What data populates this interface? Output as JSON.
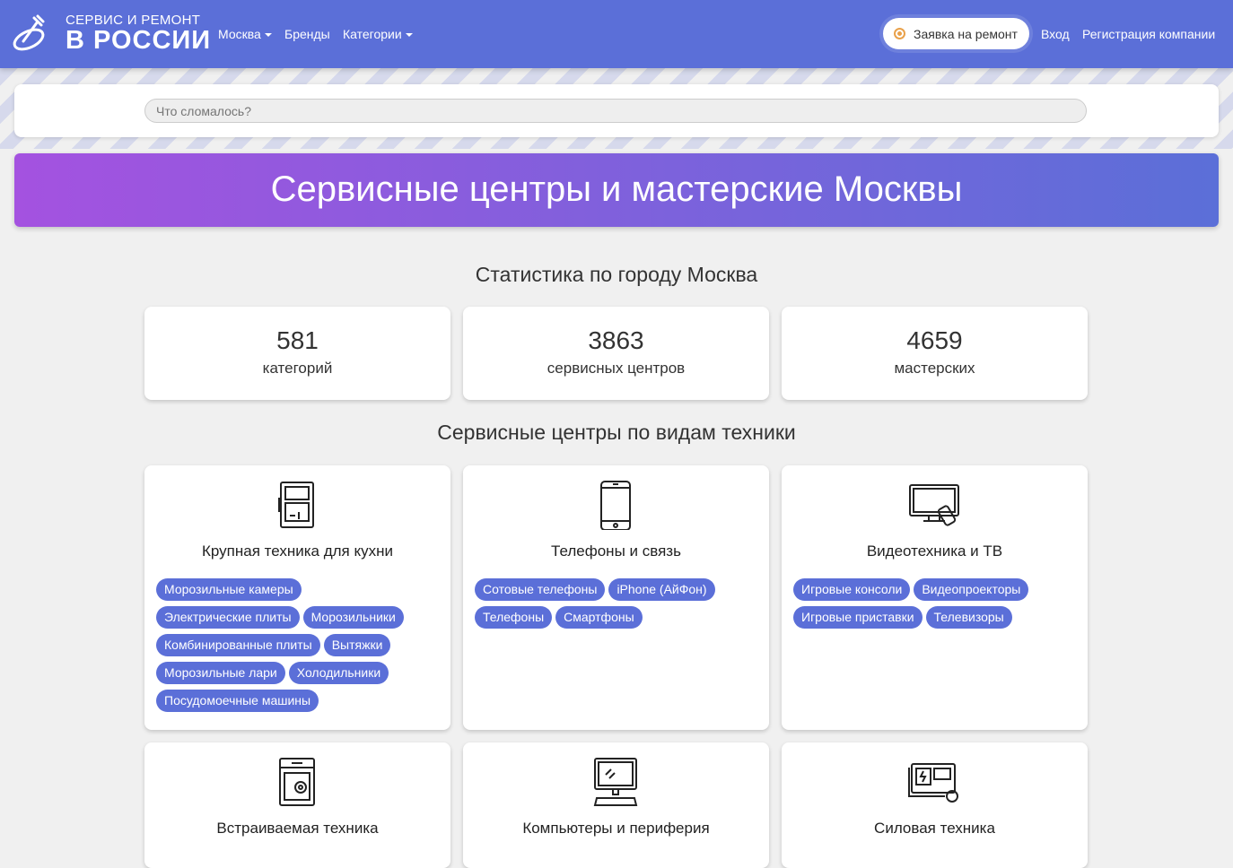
{
  "header": {
    "logo_line1": "СЕРВИС И РЕМОНТ",
    "logo_line2": "В РОССИИ",
    "nav": [
      "Москва",
      "Бренды",
      "Категории"
    ],
    "request_button": "Заявка на ремонт",
    "login": "Вход",
    "register": "Регистрация компании"
  },
  "search": {
    "placeholder": "Что сломалось?"
  },
  "banner": "Сервисные центры и мастерские Москвы",
  "stats_title": "Статистика по городу Москва",
  "stats": [
    {
      "value": "581",
      "label": "категорий"
    },
    {
      "value": "3863",
      "label": "сервисных центров"
    },
    {
      "value": "4659",
      "label": "мастерских"
    }
  ],
  "categories_title": "Сервисные центры по видам техники",
  "categories": [
    {
      "title": "Крупная техника для кухни",
      "icon": "kitchen-appliance-icon",
      "tags": [
        "Морозильные камеры",
        "Электрические плиты",
        "Морозильники",
        "Комбинированные плиты",
        "Вытяжки",
        "Морозильные лари",
        "Холодильники",
        "Посудомоечные машины"
      ]
    },
    {
      "title": "Телефоны и связь",
      "icon": "smartphone-icon",
      "tags": [
        "Сотовые телефоны",
        "iPhone (АйФон)",
        "Телефоны",
        "Смартфоны"
      ]
    },
    {
      "title": "Видеотехника и ТВ",
      "icon": "tv-remote-icon",
      "tags": [
        "Игровые консоли",
        "Видеопроекторы",
        "Игровые приставки",
        "Телевизоры"
      ]
    },
    {
      "title": "Встраиваемая техника",
      "icon": "built-in-oven-icon",
      "tags": []
    },
    {
      "title": "Компьютеры и периферия",
      "icon": "computer-icon",
      "tags": []
    },
    {
      "title": "Силовая техника",
      "icon": "generator-icon",
      "tags": []
    }
  ],
  "colors": {
    "header": "#5b6fd8",
    "tag": "#5b6fd8",
    "banner_start": "#a452e0",
    "banner_end": "#5b6fd8",
    "request_dot": "#e9a14a"
  }
}
